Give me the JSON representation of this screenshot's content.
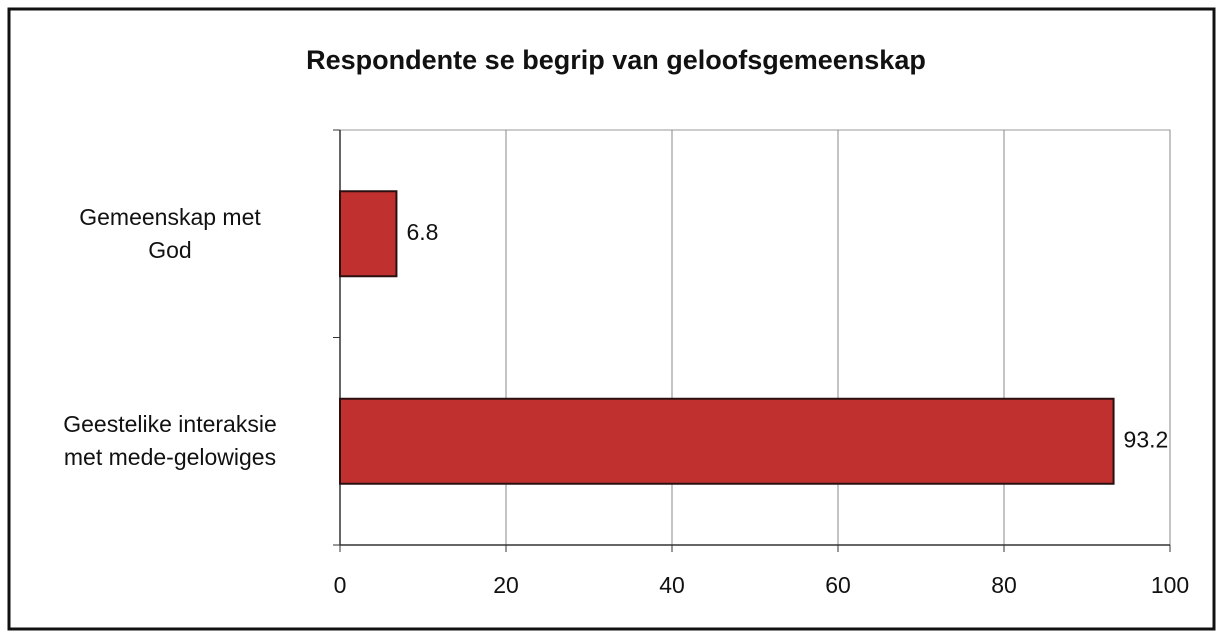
{
  "chart_data": {
    "type": "bar",
    "orientation": "horizontal",
    "title": "Respondente se begrip van geloofsgemeenskap",
    "categories": [
      "Gemeenskap met\nGod",
      "Geestelike interaksie\nmet mede-gelowiges"
    ],
    "values": [
      6.8,
      93.2
    ],
    "color": "#c0302f",
    "xlim": [
      0,
      100
    ],
    "xticks": [
      0,
      20,
      40,
      60,
      80,
      100
    ],
    "grid": true
  }
}
